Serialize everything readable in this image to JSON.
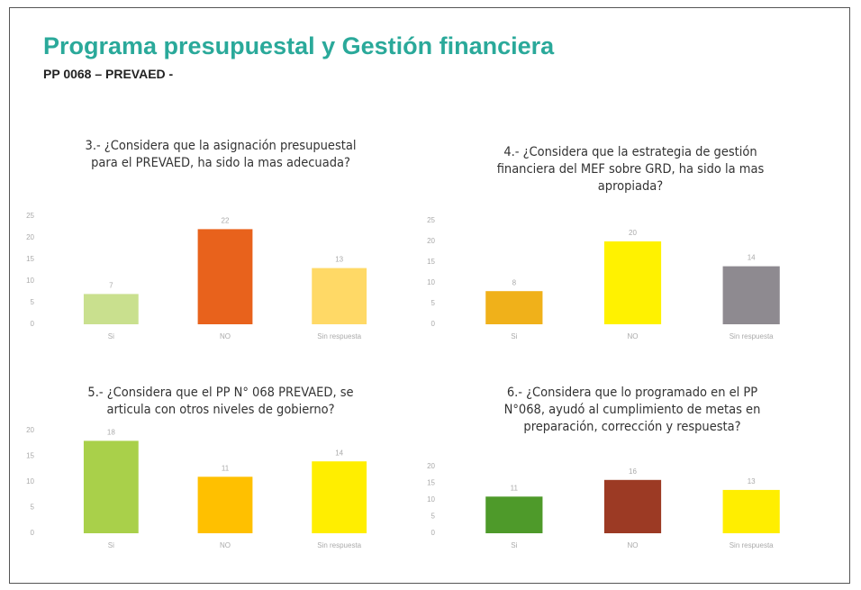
{
  "header": {
    "title": "Programa presupuestal y Gestión financiera",
    "subtitle": "PP 0068 – PREVAED -"
  },
  "chart_data": [
    {
      "type": "bar",
      "title": "3.- ¿Considera que la asignación presupuestal para el PREVAED, ha sido la mas adecuada?",
      "categories": [
        "Si",
        "NO",
        "Sin respuesta"
      ],
      "values": [
        7,
        22,
        13
      ],
      "colors": [
        "#c9e08e",
        "#e8621c",
        "#ffd966"
      ],
      "ylim": [
        0,
        25
      ],
      "yticks": [
        0,
        5,
        10,
        15,
        20,
        25
      ]
    },
    {
      "type": "bar",
      "title": "4.- ¿Considera que la estrategia de gestión financiera del MEF sobre GRD, ha sido la mas apropiada?",
      "categories": [
        "Si",
        "NO",
        "Sin respuesta"
      ],
      "values": [
        8,
        20,
        14
      ],
      "colors": [
        "#f0b11a",
        "#fff200",
        "#8e8a90"
      ],
      "ylim": [
        0,
        25
      ],
      "yticks": [
        0,
        5,
        10,
        15,
        20,
        25
      ]
    },
    {
      "type": "bar",
      "title": "5.- ¿Considera que el PP N° 068 PREVAED, se articula con otros niveles de gobierno?",
      "categories": [
        "Si",
        "NO",
        "Sin respuesta"
      ],
      "values": [
        18,
        11,
        14
      ],
      "colors": [
        "#a9d04a",
        "#ffc000",
        "#ffee00"
      ],
      "ylim": [
        0,
        20
      ],
      "yticks": [
        0,
        5,
        10,
        15,
        20
      ]
    },
    {
      "type": "bar",
      "title": "6.- ¿Considera que lo programado en el PP N°068, ayudó al cumplimiento de metas en preparación, corrección y respuesta?",
      "categories": [
        "Si",
        "NO",
        "Sin respuesta"
      ],
      "values": [
        11,
        16,
        13
      ],
      "colors": [
        "#4e9a2a",
        "#9c3a24",
        "#ffee00"
      ],
      "ylim": [
        0,
        20
      ],
      "yticks": [
        0,
        5,
        10,
        15,
        20
      ]
    }
  ]
}
